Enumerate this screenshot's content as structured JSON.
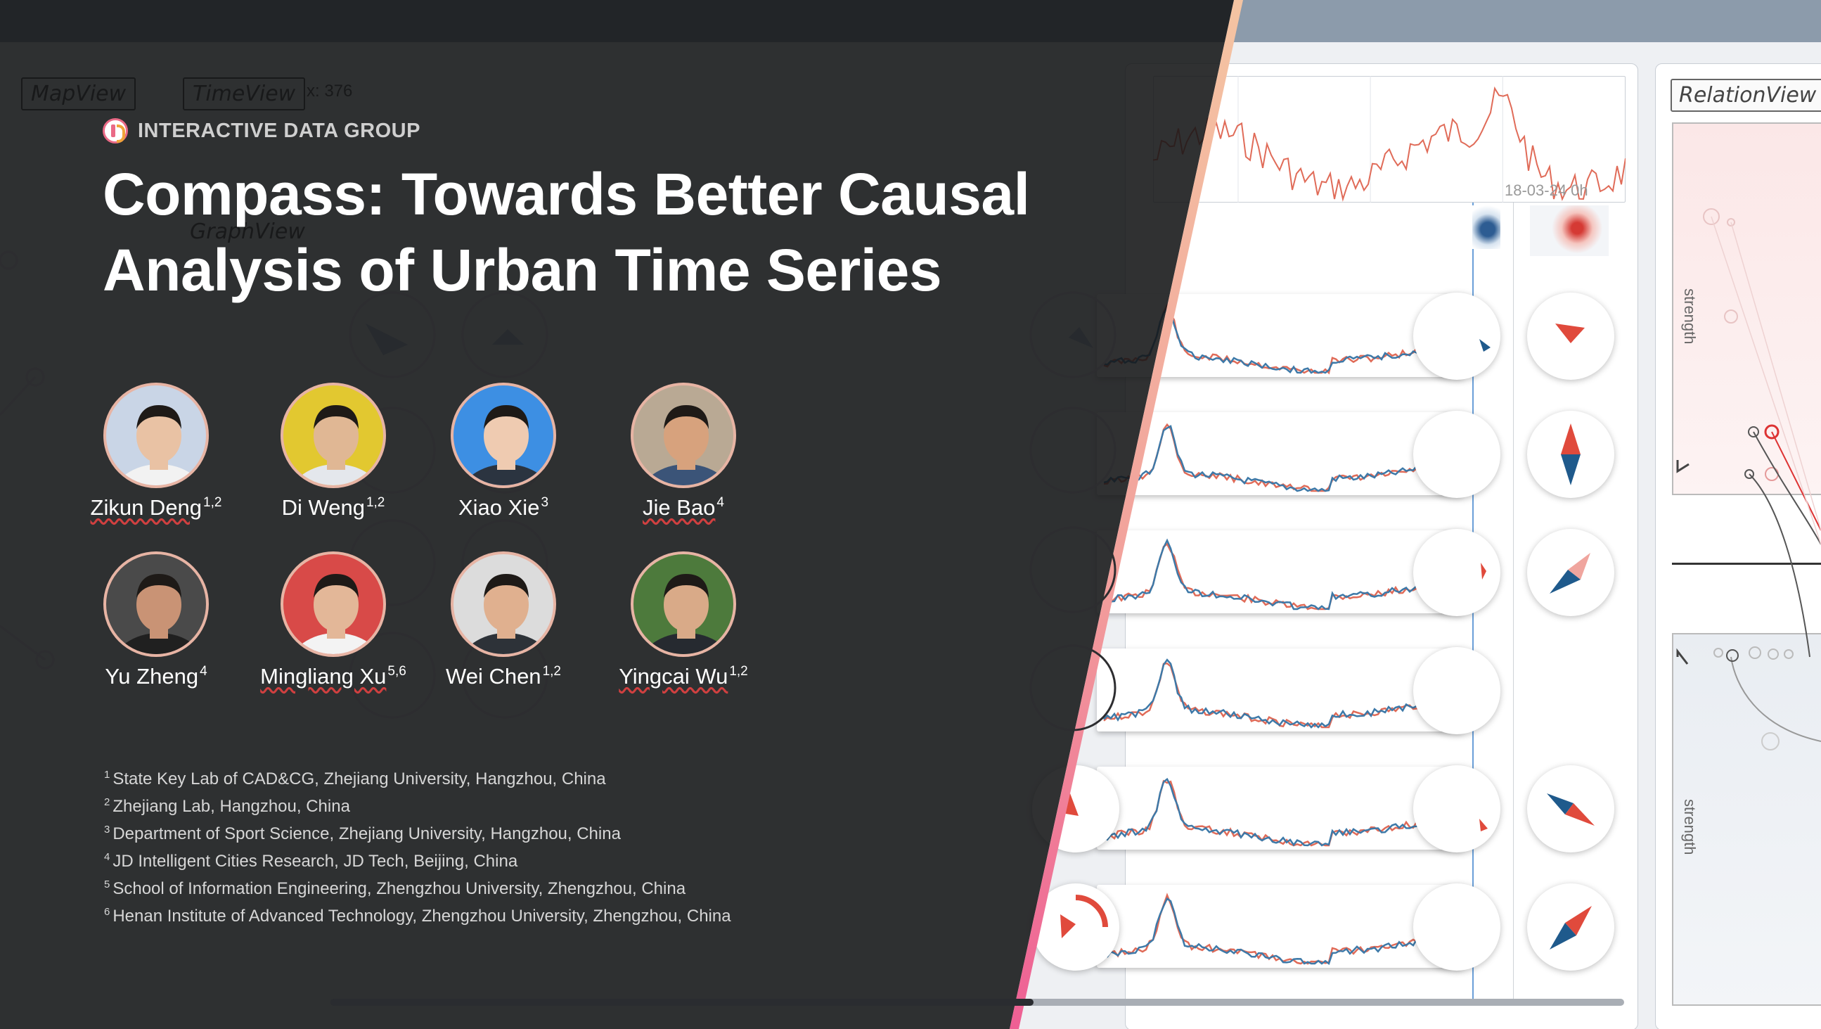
{
  "group": {
    "name": "INTERACTIVE DATA GROUP",
    "logo_icon": "idg-logo-icon"
  },
  "title": {
    "line1": "Compass: Towards Better Causal",
    "line2": "Analysis of Urban Time Series"
  },
  "authors": [
    {
      "name": "Zikun Deng",
      "sup": "1,2",
      "bg": "#c9d5e6",
      "shirt": "#f2f2f2",
      "skin": "#e9c2a4"
    },
    {
      "name": "Di Weng",
      "sup": "1,2",
      "bg": "#e2c830",
      "shirt": "#e4e7ec",
      "skin": "#e0b794"
    },
    {
      "name": "Xiao Xie",
      "sup": "3",
      "bg": "#3d8fe3",
      "shirt": "#2b3440",
      "skin": "#efcbb1"
    },
    {
      "name": "Jie Bao",
      "sup": "4",
      "bg": "#b9a994",
      "shirt": "#3b5478",
      "skin": "#d7a27d"
    },
    {
      "name": "Yu Zheng",
      "sup": "4",
      "bg": "#4a4a4a",
      "shirt": "#202020",
      "skin": "#c99375"
    },
    {
      "name": "Mingliang Xu",
      "sup": "5,6",
      "bg": "#d84a48",
      "shirt": "#f3f3f3",
      "skin": "#e3b798"
    },
    {
      "name": "Wei Chen",
      "sup": "1,2",
      "bg": "#dcdcdc",
      "shirt": "#2d3238",
      "skin": "#e0b08f"
    },
    {
      "name": "Yingcai Wu",
      "sup": "1,2",
      "bg": "#4d7a3c",
      "shirt": "#262a30",
      "skin": "#d9aa88"
    }
  ],
  "affiliations": [
    {
      "num": "1",
      "text": "State Key Lab of CAD&CG, Zhejiang University, Hangzhou, China"
    },
    {
      "num": "2",
      "text": "Zhejiang Lab, Hangzhou, China"
    },
    {
      "num": "3",
      "text": "Department of Sport Science, Zhejiang University, Hangzhou, China"
    },
    {
      "num": "4",
      "text": "JD Intelligent Cities Research, JD Tech, Beijing, China"
    },
    {
      "num": "5",
      "text": "School of Information Engineering, Zhengzhou University, Zhengzhou, China"
    },
    {
      "num": "6",
      "text": "Henan Institute of Advanced Technology, Zhengzhou University, Zhengzhou, China"
    }
  ],
  "background_ui": {
    "map_view": "MapView",
    "time_view": "TimeView",
    "graph_view": "GraphView",
    "relation_view": "RelationView",
    "date_label": "18-03-24 0h",
    "strength_label": "strength",
    "x_readout": "x: 376"
  },
  "colors": {
    "accent_pink": "#ee6a8f",
    "accent_peach": "#f4c4a2",
    "series_red": "#e06b58",
    "series_blue": "#3d79a8"
  }
}
